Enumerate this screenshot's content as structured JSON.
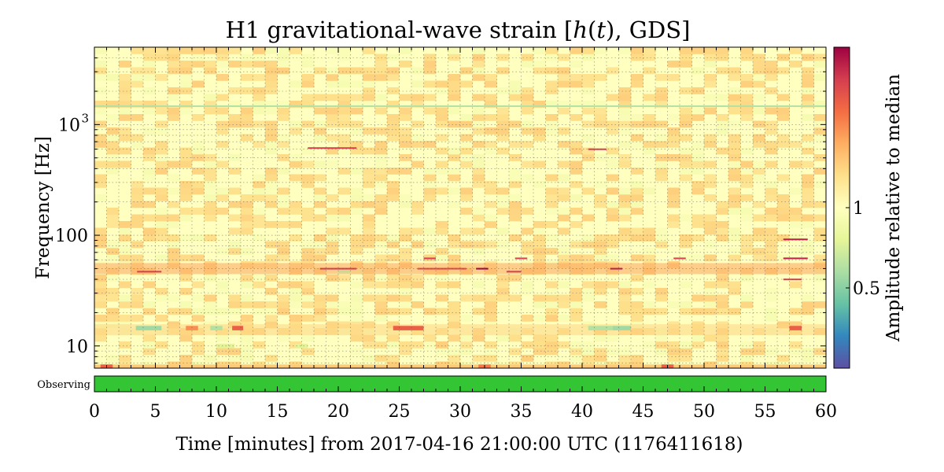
{
  "chart_data": {
    "type": "heatmap",
    "title": "H1 gravitational-wave strain [h(t), GDS]",
    "title_parts": {
      "prefix": "H1 gravitational-wave strain [",
      "h": "h",
      "open_paren": "(",
      "t": "t",
      "close_paren": ")",
      "suffix": ", GDS]"
    },
    "xlabel": "Time [minutes] from 2017-04-16 21:00:00 UTC (1176411618)",
    "ylabel": "Frequency [Hz]",
    "x_range": [
      0,
      60
    ],
    "x_ticks": [
      0,
      5,
      10,
      15,
      20,
      25,
      30,
      35,
      40,
      45,
      50,
      55,
      60
    ],
    "x_tick_labels": [
      "0",
      "5",
      "10",
      "15",
      "20",
      "25",
      "30",
      "35",
      "40",
      "45",
      "50",
      "55",
      "60"
    ],
    "y_scale": "log",
    "y_range": [
      6.3,
      5000
    ],
    "y_ticks": [
      {
        "value": 10,
        "label": "10"
      },
      {
        "value": 100,
        "label": "100"
      },
      {
        "value": 1000,
        "label_base": "10",
        "label_exp": "3"
      }
    ],
    "grid": true,
    "colormap": "Spectral_r",
    "colorbar": {
      "label": "Amplitude relative to median",
      "scale": "log",
      "range": [
        0.25,
        4
      ],
      "ticks": [
        {
          "value": 1,
          "label": "1"
        },
        {
          "value": 0.5,
          "label": "0.5"
        }
      ],
      "colors": [
        "#5e4fa2",
        "#3288bd",
        "#66c2a5",
        "#abdda4",
        "#e6f598",
        "#ffffbf",
        "#fee08b",
        "#fdae61",
        "#f46d43",
        "#d53e4f",
        "#9e0142"
      ]
    },
    "background_value": 1.0,
    "features": [
      {
        "kind": "line",
        "freq": 1470,
        "t0": 0,
        "t1": 60,
        "value": 0.6
      },
      {
        "kind": "band",
        "freq": 50,
        "t0": 0,
        "t1": 60,
        "value": 1.8
      },
      {
        "kind": "band",
        "freq": 14,
        "t0": 0,
        "t1": 60,
        "value": 1.4
      },
      {
        "kind": "patch",
        "freq": 14.5,
        "t0": 3.4,
        "t1": 5.5,
        "value": 0.55
      },
      {
        "kind": "patch",
        "freq": 14.5,
        "t0": 7.5,
        "t1": 8.5,
        "value": 2.0
      },
      {
        "kind": "patch",
        "freq": 14.5,
        "t0": 9.5,
        "t1": 10.5,
        "value": 0.6
      },
      {
        "kind": "patch",
        "freq": 14.5,
        "t0": 11.3,
        "t1": 12.2,
        "value": 2.5
      },
      {
        "kind": "patch",
        "freq": 14.5,
        "t0": 24.5,
        "t1": 27.0,
        "value": 2.5
      },
      {
        "kind": "patch",
        "freq": 14.5,
        "t0": 40.5,
        "t1": 42.5,
        "value": 0.6
      },
      {
        "kind": "patch",
        "freq": 14.5,
        "t0": 42.5,
        "t1": 44.0,
        "value": 0.55
      },
      {
        "kind": "patch",
        "freq": 14.5,
        "t0": 57.0,
        "t1": 58.0,
        "value": 2.5
      },
      {
        "kind": "patch",
        "freq": 10,
        "t0": 10.0,
        "t1": 11.5,
        "value": 0.75
      },
      {
        "kind": "patch",
        "freq": 10,
        "t0": 16.5,
        "t1": 17.5,
        "value": 0.75
      },
      {
        "kind": "line",
        "freq": 50,
        "t0": 31.3,
        "t1": 32.3,
        "value": 4.0
      },
      {
        "kind": "line",
        "freq": 50,
        "t0": 42.3,
        "t1": 43.3,
        "value": 3.5
      },
      {
        "kind": "line",
        "freq": 47,
        "t0": 33.8,
        "t1": 35.0,
        "value": 3.0
      },
      {
        "kind": "line",
        "freq": 47,
        "t0": 3.5,
        "t1": 5.5,
        "value": 3.0
      },
      {
        "kind": "line",
        "freq": 62,
        "t0": 27.0,
        "t1": 28.0,
        "value": 3.0
      },
      {
        "kind": "line",
        "freq": 62,
        "t0": 34.5,
        "t1": 35.5,
        "value": 3.0
      },
      {
        "kind": "line",
        "freq": 62,
        "t0": 47.5,
        "t1": 48.5,
        "value": 3.0
      },
      {
        "kind": "line",
        "freq": 62,
        "t0": 56.5,
        "t1": 58.5,
        "value": 3.5
      },
      {
        "kind": "line",
        "freq": 92,
        "t0": 56.5,
        "t1": 58.5,
        "value": 3.5
      },
      {
        "kind": "line",
        "freq": 40,
        "t0": 56.5,
        "t1": 58.0,
        "value": 3.0
      },
      {
        "kind": "line",
        "freq": 50,
        "t0": 18.5,
        "t1": 21.5,
        "value": 3.0
      },
      {
        "kind": "line",
        "freq": 50,
        "t0": 26.5,
        "t1": 30.5,
        "value": 2.8
      },
      {
        "kind": "line",
        "freq": 47,
        "t0": 20.0,
        "t1": 21.0,
        "value": 0.6
      },
      {
        "kind": "line",
        "freq": 615,
        "t0": 17.5,
        "t1": 21.5,
        "value": 3.0
      },
      {
        "kind": "line",
        "freq": 600,
        "t0": 40.5,
        "t1": 42.0,
        "value": 3.0
      },
      {
        "kind": "patch",
        "freq": 6.5,
        "t0": 0,
        "t1": 60,
        "value": 1.5
      },
      {
        "kind": "patch",
        "freq": 6.5,
        "t0": 0.5,
        "t1": 1.5,
        "value": 2.5
      },
      {
        "kind": "patch",
        "freq": 6.5,
        "t0": 31.5,
        "t1": 32.5,
        "value": 2.2
      },
      {
        "kind": "patch",
        "freq": 6.5,
        "t0": 46.5,
        "t1": 47.5,
        "value": 2.5
      }
    ],
    "segments": [
      {
        "label": "Observing",
        "t0": 0,
        "t1": 60,
        "color": "#33c533"
      }
    ]
  }
}
